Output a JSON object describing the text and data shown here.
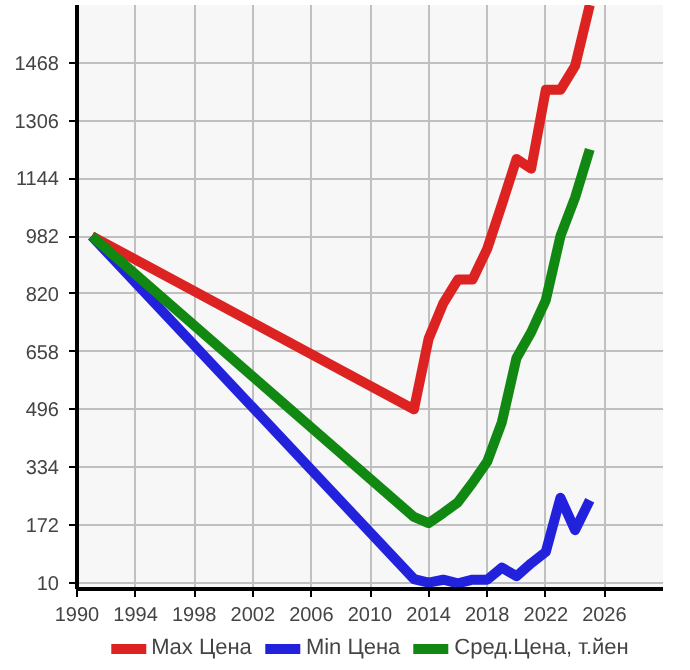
{
  "chart_data": {
    "type": "line",
    "xlim": [
      1990,
      2030
    ],
    "xticks": [
      1990,
      1994,
      1998,
      2002,
      2006,
      2010,
      2014,
      2018,
      2022,
      2026
    ],
    "ylim": [
      -8,
      1630
    ],
    "yticks": [
      10,
      172,
      334,
      496,
      658,
      820,
      982,
      1144,
      1306,
      1468
    ],
    "series": [
      {
        "name": "Max Цена",
        "color": "#dd2222",
        "x": [
          1991,
          2013,
          2014,
          2015,
          2016,
          2017,
          2018,
          2019,
          2020,
          2021,
          2022,
          2023,
          2024,
          2025
        ],
        "values": [
          982,
          496,
          694,
          793,
          860,
          860,
          946,
          1070,
          1198,
          1171,
          1392,
          1392,
          1459,
          1630
        ]
      },
      {
        "name": "Min Цена",
        "color": "#2222dd",
        "x": [
          1991,
          2013,
          2014,
          2015,
          2016,
          2017,
          2018,
          2019,
          2020,
          2021,
          2022,
          2023,
          2024,
          2025
        ],
        "values": [
          982,
          20,
          10,
          18,
          8,
          18,
          18,
          52,
          28,
          64,
          96,
          248,
          157,
          241
        ]
      },
      {
        "name": "Сред.Цена, т.йен",
        "color": "#118811",
        "x": [
          1991,
          2013,
          2014,
          2015,
          2016,
          2017,
          2018,
          2019,
          2020,
          2021,
          2022,
          2023,
          2024,
          2025
        ],
        "values": [
          982,
          194,
          177,
          205,
          235,
          290,
          349,
          460,
          640,
          712,
          802,
          982,
          1090,
          1225
        ]
      }
    ],
    "grid": true,
    "legend": "bottom",
    "line_style": "solid"
  }
}
